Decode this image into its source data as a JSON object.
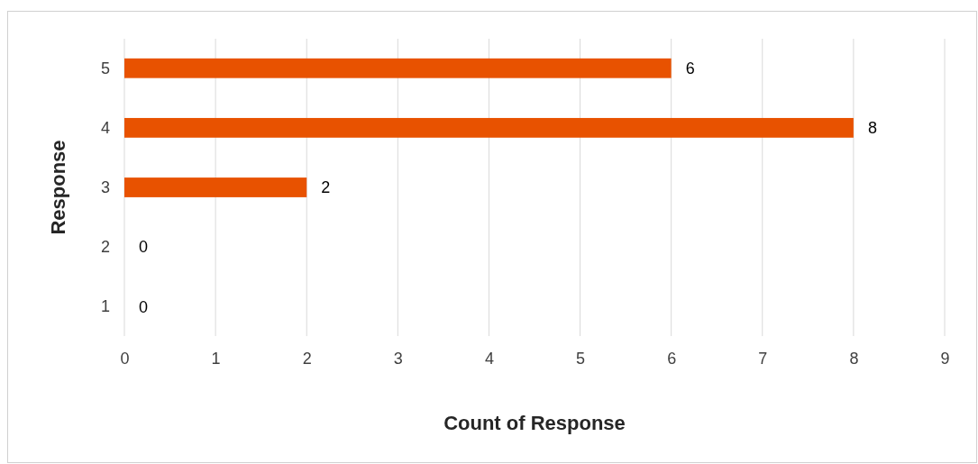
{
  "chart_data": {
    "type": "bar",
    "orientation": "horizontal",
    "xlabel": "Count of Response",
    "ylabel": "Response",
    "categories": [
      "5",
      "4",
      "3",
      "2",
      "1"
    ],
    "values": [
      6,
      8,
      2,
      0,
      0
    ],
    "color": "#e85200",
    "xlim": [
      0,
      9
    ],
    "xticks": [
      0,
      1,
      2,
      3,
      4,
      5,
      6,
      7,
      8,
      9
    ],
    "grid": "x",
    "data_labels": true
  }
}
